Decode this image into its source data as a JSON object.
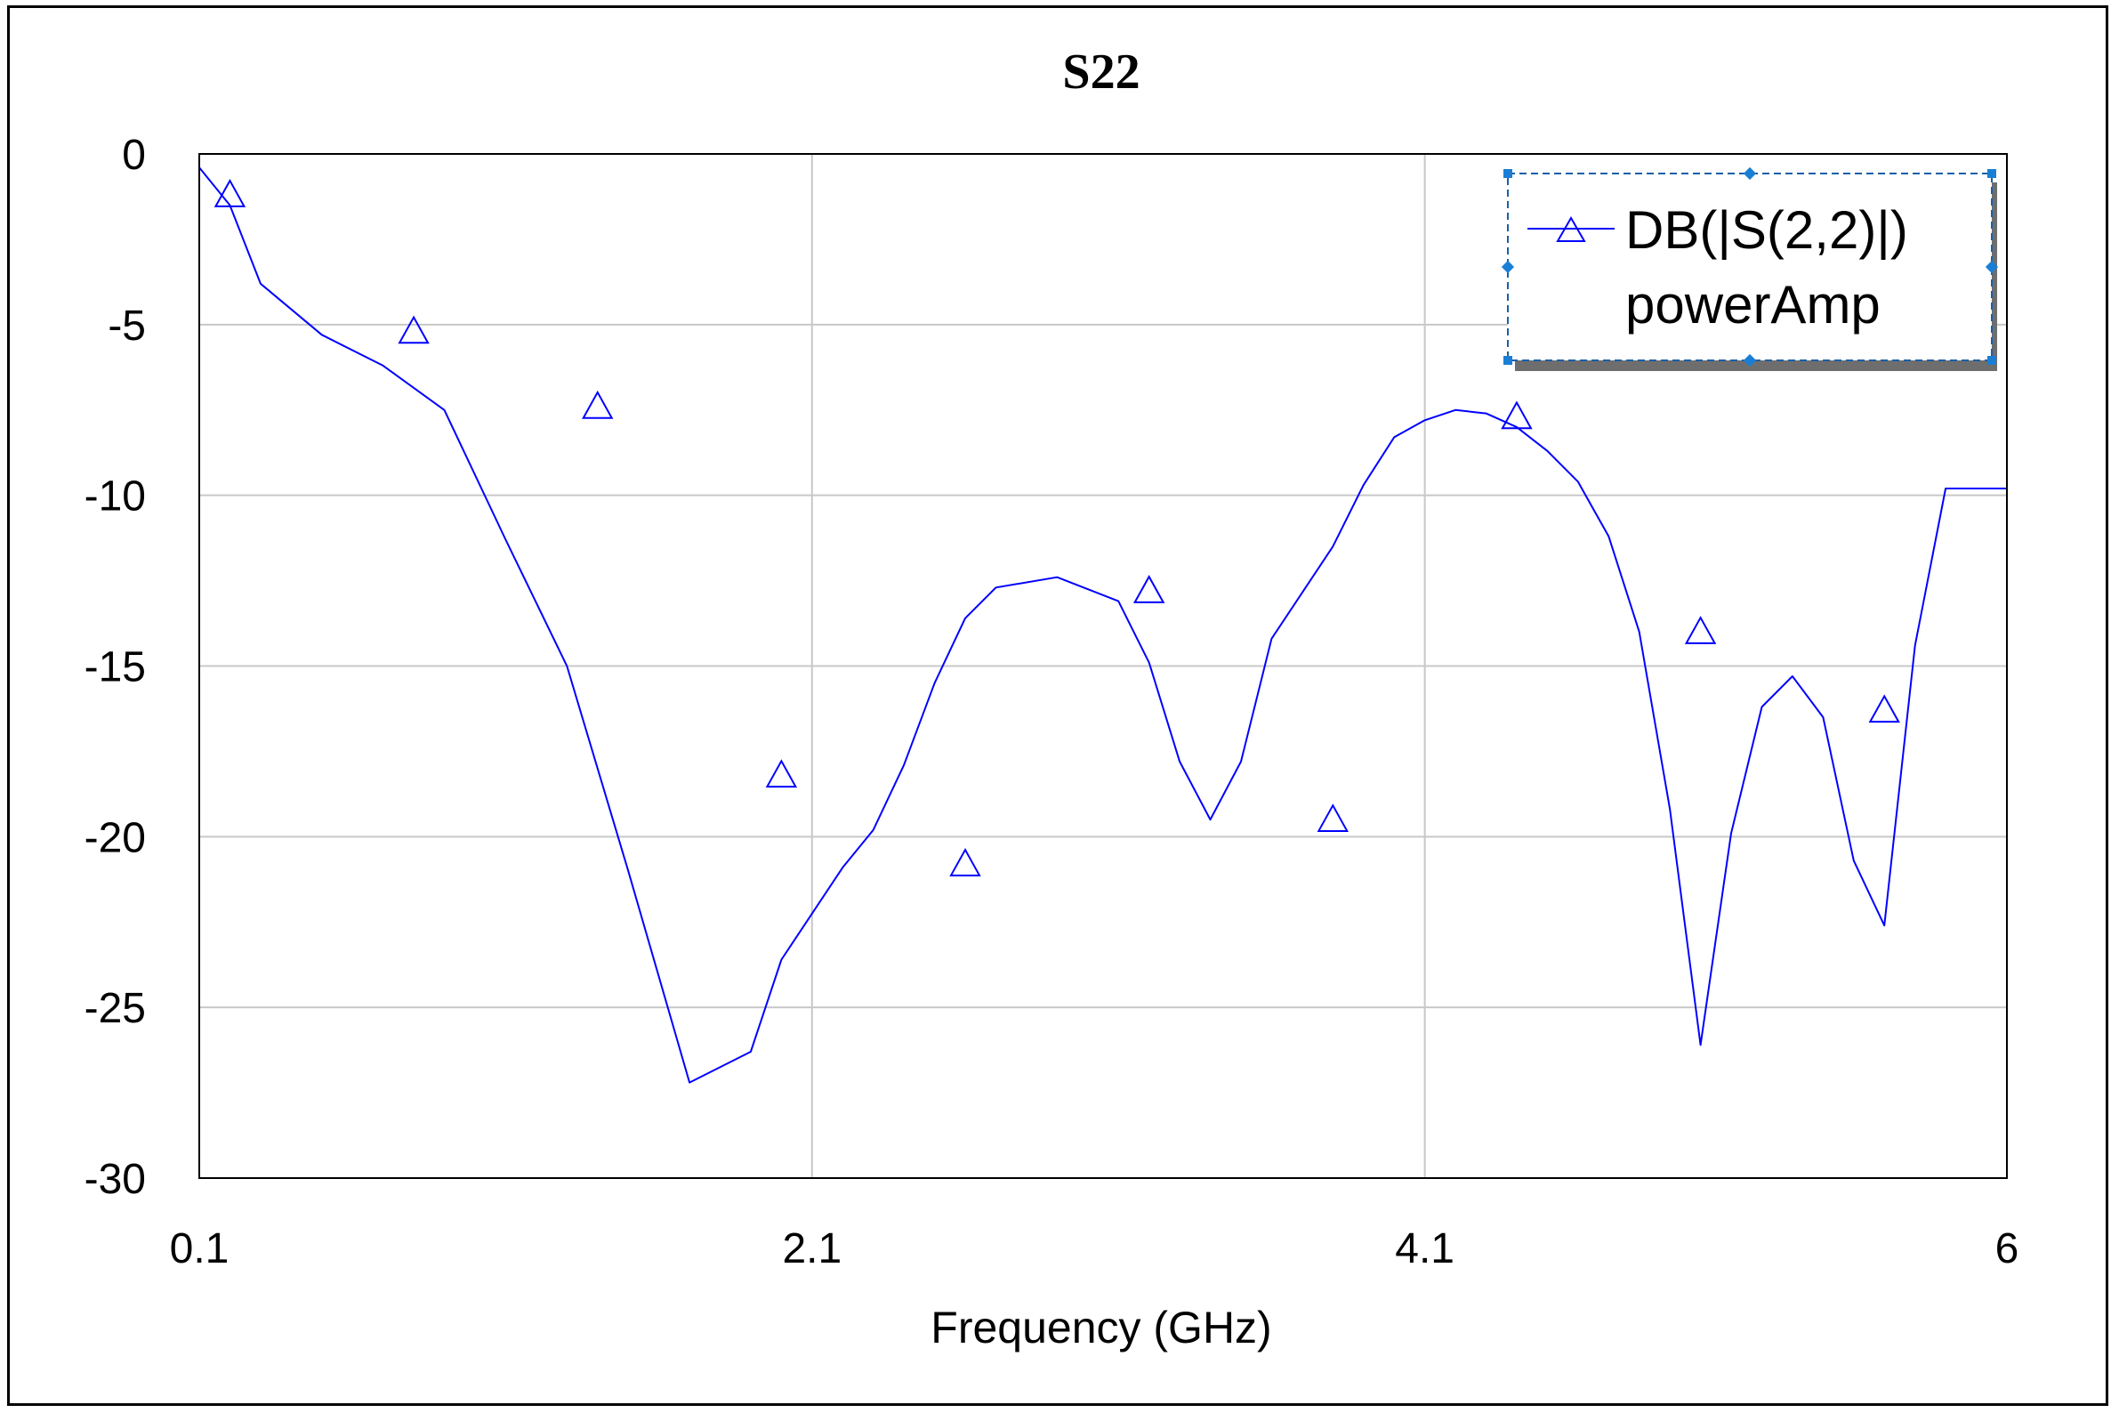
{
  "chart_data": {
    "type": "line",
    "title": "S22",
    "xlabel": "Frequency (GHz)",
    "ylabel": "",
    "xlim": [
      0.1,
      6
    ],
    "ylim": [
      -30,
      0
    ],
    "xticks": [
      0.1,
      2.1,
      4.1,
      6
    ],
    "xtick_labels": [
      "0.1",
      "2.1",
      "4.1",
      "6"
    ],
    "yticks": [
      0,
      -5,
      -10,
      -15,
      -20,
      -25,
      -30
    ],
    "ytick_labels": [
      "0",
      "-5",
      "-10",
      "-15",
      "-20",
      "-25",
      "-30"
    ],
    "grid": true,
    "legend_position": "top-right",
    "line_color": "#0000ff",
    "series": [
      {
        "name": "DB(|S(2,2)|)",
        "name_line2": "powerAmp",
        "marker": "triangle",
        "x": [
          0.1,
          0.2,
          0.3,
          0.5,
          0.7,
          0.9,
          1.1,
          1.3,
          1.5,
          1.7,
          1.9,
          2.0,
          2.2,
          2.3,
          2.4,
          2.5,
          2.6,
          2.7,
          2.9,
          3.1,
          3.2,
          3.3,
          3.4,
          3.5,
          3.6,
          3.8,
          3.9,
          4.0,
          4.1,
          4.2,
          4.3,
          4.4,
          4.5,
          4.6,
          4.7,
          4.8,
          4.9,
          5.0,
          5.1,
          5.2,
          5.3,
          5.4,
          5.5,
          5.6,
          5.7,
          5.8,
          5.9,
          6.0
        ],
        "y": [
          -0.4,
          -1.5,
          -3.8,
          -5.3,
          -6.2,
          -7.5,
          -11.3,
          -15.0,
          -21.0,
          -27.2,
          -26.3,
          -23.6,
          -20.9,
          -19.8,
          -17.9,
          -15.5,
          -13.6,
          -12.7,
          -12.4,
          -13.1,
          -14.9,
          -17.8,
          -19.5,
          -17.8,
          -14.2,
          -11.5,
          -9.7,
          -8.3,
          -7.8,
          -7.5,
          -7.6,
          -8.0,
          -8.7,
          -9.6,
          -11.2,
          -14.0,
          -19.2,
          -26.1,
          -19.9,
          -16.2,
          -15.3,
          -16.5,
          -20.7,
          -22.6,
          -14.4,
          -9.8,
          -9.8,
          -9.8
        ],
        "marker_x": [
          0.2,
          0.8,
          1.4,
          2.0,
          2.6,
          3.2,
          3.8,
          4.4,
          5.0,
          5.6
        ],
        "marker_y": [
          -1.2,
          -5.2,
          -7.4,
          -18.2,
          -20.8,
          -12.8,
          -19.5,
          -7.7,
          -14.0,
          -16.3
        ]
      }
    ]
  }
}
